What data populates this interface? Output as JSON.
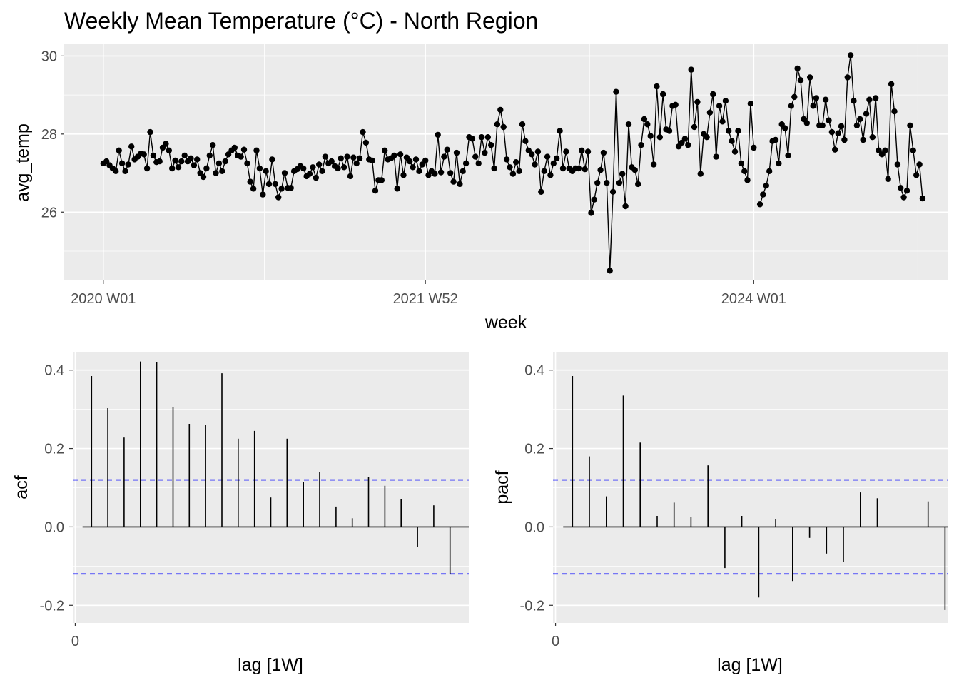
{
  "chart_data": [
    {
      "type": "line",
      "title": "Weekly Mean Temperature (°C) - North Region",
      "xlabel": "week",
      "ylabel": "avg_temp",
      "x_ticks": [
        {
          "label": "2020 W01",
          "index": 0
        },
        {
          "label": "2021 W52",
          "index": 103
        },
        {
          "label": "2024 W01",
          "index": 208
        }
      ],
      "y_ticks": [
        26,
        28,
        30
      ],
      "ylim": [
        24.25,
        30.3
      ],
      "x_index_range": [
        -12.5,
        270
      ],
      "markers": true,
      "grid": true,
      "series": [
        {
          "values": [
            27.25,
            27.3,
            27.2,
            27.12,
            27.05,
            27.58,
            27.25,
            27.05,
            27.22,
            27.68,
            27.35,
            27.42,
            27.5,
            27.48,
            27.12,
            28.05,
            27.45,
            27.28,
            27.3,
            27.65,
            27.75,
            27.58,
            27.12,
            27.32,
            27.15,
            27.3,
            27.45,
            27.3,
            27.38,
            27.2,
            27.35,
            27.0,
            26.9,
            27.12,
            27.45,
            27.72,
            27.0,
            27.25,
            27.05,
            27.3,
            27.48,
            27.58,
            27.65,
            27.45,
            27.42,
            27.6,
            27.25,
            26.78,
            26.6,
            27.58,
            27.12,
            26.45,
            27.05,
            26.72,
            27.35,
            26.72,
            26.38,
            26.6,
            27.0,
            26.62,
            26.62,
            27.05,
            27.1,
            27.18,
            27.12,
            26.92,
            26.98,
            27.15,
            26.88,
            27.22,
            27.05,
            27.42,
            27.25,
            27.3,
            27.18,
            27.12,
            27.38,
            27.15,
            27.42,
            26.92,
            27.4,
            27.25,
            27.38,
            28.05,
            27.78,
            27.35,
            27.32,
            26.55,
            26.82,
            26.82,
            27.58,
            27.35,
            27.38,
            27.45,
            26.6,
            27.48,
            26.95,
            27.4,
            27.3,
            27.15,
            27.35,
            27.05,
            27.22,
            27.32,
            26.95,
            27.05,
            26.98,
            27.98,
            27.02,
            27.42,
            27.6,
            27.0,
            26.78,
            27.52,
            26.72,
            27.05,
            27.25,
            27.92,
            27.88,
            27.42,
            27.25,
            27.92,
            27.52,
            27.92,
            27.72,
            27.12,
            28.25,
            28.62,
            28.18,
            27.35,
            27.15,
            26.98,
            27.28,
            27.05,
            28.25,
            27.82,
            27.58,
            27.48,
            27.22,
            27.55,
            26.52,
            27.05,
            27.42,
            26.95,
            27.25,
            27.38,
            28.08,
            27.12,
            27.55,
            27.12,
            27.05,
            27.12,
            27.12,
            27.58,
            27.1,
            27.55,
            25.98,
            26.32,
            26.75,
            27.08,
            27.52,
            26.75,
            24.5,
            26.52,
            29.08,
            26.75,
            26.98,
            26.15,
            28.25,
            27.15,
            27.08,
            26.72,
            27.72,
            28.38,
            28.25,
            27.95,
            27.22,
            29.22,
            27.92,
            29.02,
            28.12,
            28.08,
            28.72,
            28.75,
            27.68,
            27.78,
            27.88,
            27.72,
            29.65,
            28.18,
            28.82,
            26.98,
            28.0,
            27.92,
            28.55,
            29.02,
            27.42,
            28.72,
            28.32,
            28.85,
            28.08,
            27.82,
            27.55,
            28.08,
            27.25,
            27.05,
            26.82,
            28.78,
            27.65,
            null,
            26.2,
            26.45,
            26.68,
            27.05,
            27.82,
            27.85,
            27.25,
            28.25,
            28.15,
            27.45,
            28.72,
            28.95,
            29.68,
            29.38,
            28.38,
            28.28,
            29.45,
            28.72,
            28.92,
            28.22,
            28.22,
            28.88,
            28.35,
            28.05,
            27.6,
            28.02,
            28.2,
            27.85,
            29.45,
            30.02,
            28.85,
            28.22,
            28.38,
            27.85,
            28.52,
            28.88,
            27.92,
            28.92,
            27.58,
            27.48,
            27.58,
            26.85,
            29.28,
            28.58,
            27.22,
            26.62,
            26.38,
            26.55,
            28.22,
            27.58,
            26.95,
            27.22,
            26.35
          ]
        }
      ]
    },
    {
      "type": "bar",
      "variant": "correlogram",
      "ylabel": "acf",
      "xlabel": "lag [1W]",
      "x_ticks": [
        0
      ],
      "y_ticks": [
        -0.2,
        0.0,
        0.2,
        0.4
      ],
      "ylim": [
        -0.245,
        0.445
      ],
      "xlim": [
        -0.15,
        24.15
      ],
      "lags": [
        1,
        2,
        3,
        4,
        5,
        6,
        7,
        8,
        9,
        10,
        11,
        12,
        13,
        14,
        15,
        16,
        17,
        18,
        19,
        20,
        21,
        22,
        23
      ],
      "values": [
        0.385,
        0.303,
        0.228,
        0.422,
        0.42,
        0.305,
        0.263,
        0.26,
        0.392,
        0.225,
        0.245,
        0.075,
        0.225,
        0.115,
        0.14,
        0.052,
        0.022,
        0.128,
        0.105,
        0.07,
        -0.052,
        0.055,
        -0.12
      ],
      "ci": 0.12,
      "ci_color": "#0000ff"
    },
    {
      "type": "bar",
      "variant": "correlogram",
      "ylabel": "pacf",
      "xlabel": "lag [1W]",
      "x_ticks": [
        0
      ],
      "y_ticks": [
        -0.2,
        0.0,
        0.2,
        0.4
      ],
      "ylim": [
        -0.245,
        0.445
      ],
      "xlim": [
        -0.15,
        23.15
      ],
      "lags": [
        1,
        2,
        3,
        4,
        5,
        6,
        7,
        8,
        9,
        10,
        11,
        12,
        13,
        14,
        15,
        16,
        17,
        18,
        19,
        20,
        21,
        22,
        23
      ],
      "values": [
        0.385,
        0.18,
        0.078,
        0.335,
        0.215,
        0.028,
        0.062,
        0.025,
        0.157,
        -0.105,
        0.028,
        -0.18,
        0.02,
        -0.138,
        -0.028,
        -0.068,
        -0.09,
        0.088,
        0.073,
        0.0,
        0.0,
        0.065,
        -0.212
      ],
      "ci": 0.12,
      "ci_color": "#0000ff"
    }
  ]
}
